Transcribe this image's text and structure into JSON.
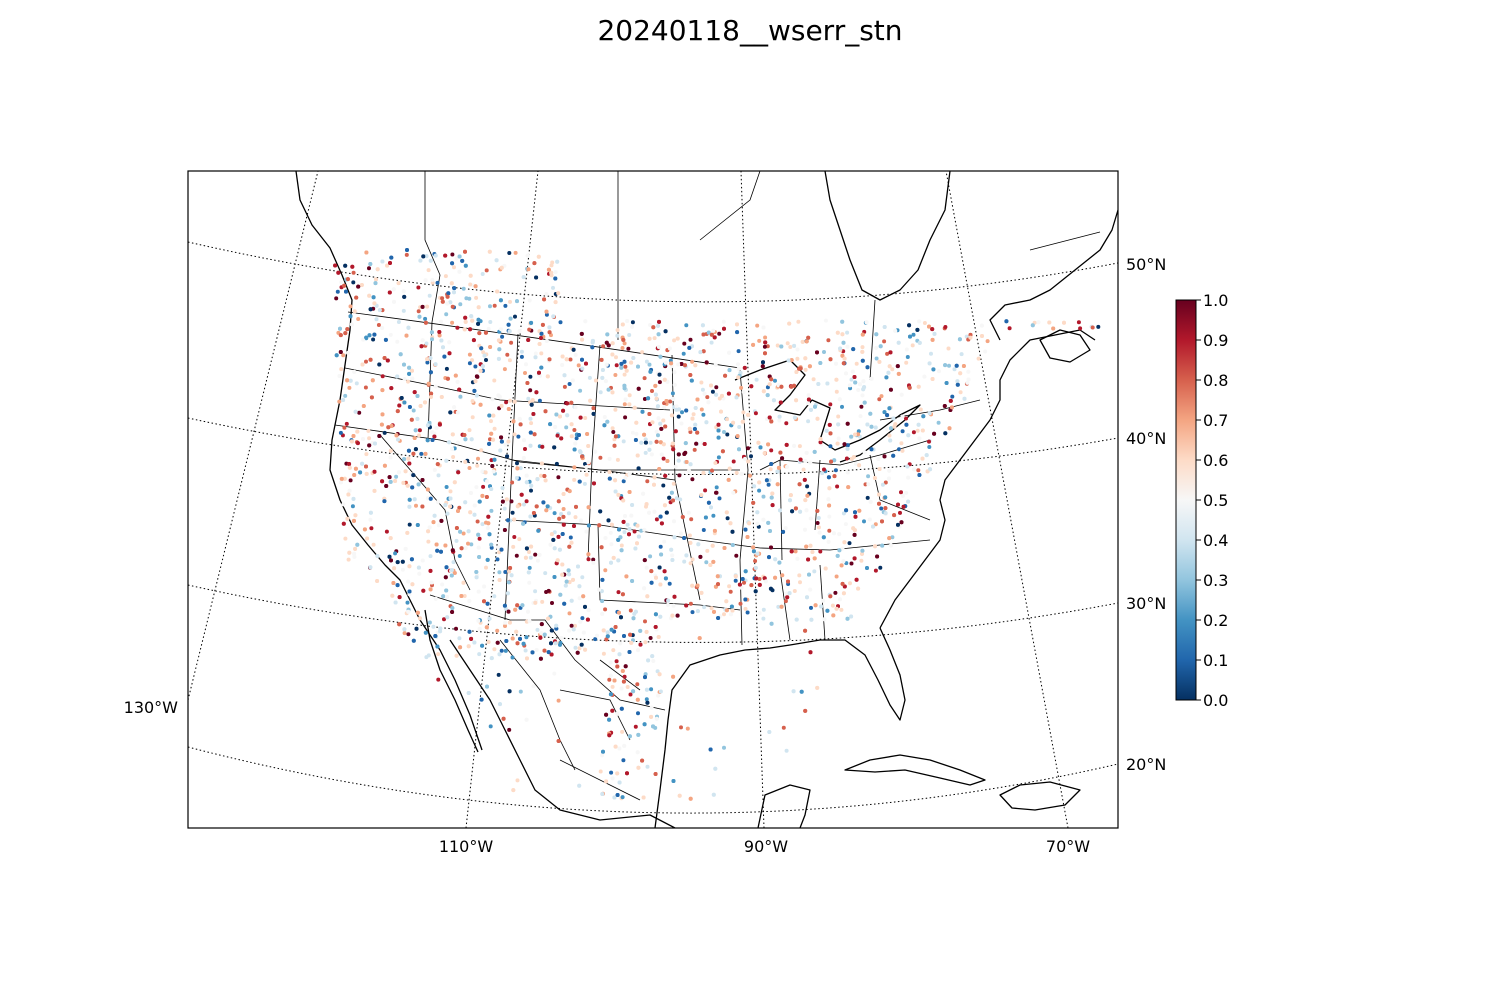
{
  "title": "20240118__wserr_stn",
  "map": {
    "projection": "lambert-conformal",
    "region": "continental United States",
    "grid_style": "dotted",
    "meridians": [
      {
        "value": -130,
        "label": "130°W"
      },
      {
        "value": -110,
        "label": "110°W"
      },
      {
        "value": -90,
        "label": "90°W"
      },
      {
        "value": -70,
        "label": "70°W"
      }
    ],
    "parallels": [
      {
        "value": 20,
        "label": "20°N"
      },
      {
        "value": 30,
        "label": "30°N"
      },
      {
        "value": 40,
        "label": "40°N"
      },
      {
        "value": 50,
        "label": "50°N"
      }
    ]
  },
  "colorbar": {
    "colormap": "RdBu_r",
    "range": [
      0.0,
      1.0
    ],
    "ticks": [
      "0.0",
      "0.1",
      "0.2",
      "0.3",
      "0.4",
      "0.5",
      "0.6",
      "0.7",
      "0.8",
      "0.9",
      "1.0"
    ],
    "colors": [
      "#053061",
      "#2166ac",
      "#4393c3",
      "#92c5de",
      "#d1e5f0",
      "#f7f7f7",
      "#fddbc7",
      "#f4a582",
      "#d6604d",
      "#b2182b",
      "#67001f"
    ]
  },
  "chart_data": {
    "type": "scatter",
    "title": "20240118__wserr_stn",
    "xlabel": "",
    "ylabel": "",
    "color_variable_range": [
      0.0,
      1.0
    ],
    "legend": "colorbar right",
    "description_of_points": "thousands of station markers colored 0.0–1.0 across North America; dense over the CONUS, sparse over Mexico, Canada and the Gulf"
  }
}
